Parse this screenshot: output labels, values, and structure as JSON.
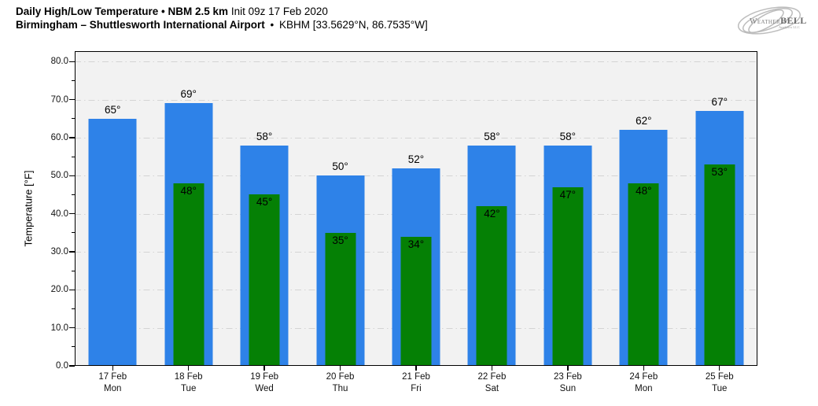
{
  "header": {
    "title_bold": "Daily High/Low Temperature • NBM 2.5 km",
    "title_regular": "Init 09z 17 Feb 2020",
    "subtitle_bold": "Birmingham – Shuttlesworth International Airport",
    "subtitle_separator": "•",
    "subtitle_regular": "KBHM [33.5629°N, 86.7535°W]"
  },
  "logo": {
    "brand_first": "Weather",
    "brand_second": "BELL",
    "subtext": "Analytics LLC"
  },
  "chart_data": {
    "type": "bar",
    "title": "Daily High/Low Temperature • NBM 2.5 km Init 09z 17 Feb 2020 — Birmingham – Shuttlesworth International Airport • KBHM",
    "xlabel": "",
    "ylabel": "Temperature [°F]",
    "ylim": [
      0,
      82.75
    ],
    "ytick_step": 10,
    "ytick_labels": [
      "0.0",
      "10.0",
      "20.0",
      "30.0",
      "40.0",
      "50.0",
      "60.0",
      "70.0",
      "80.0"
    ],
    "value_suffix": "°",
    "grid": "horizontal dash-dot",
    "legend": "none",
    "plot_bg": "#f2f2f2",
    "grid_color": "#d4d4d4",
    "categories": [
      {
        "date": "17 Feb",
        "day": "Mon"
      },
      {
        "date": "18 Feb",
        "day": "Tue"
      },
      {
        "date": "19 Feb",
        "day": "Wed"
      },
      {
        "date": "20 Feb",
        "day": "Thu"
      },
      {
        "date": "21 Feb",
        "day": "Fri"
      },
      {
        "date": "22 Feb",
        "day": "Sat"
      },
      {
        "date": "23 Feb",
        "day": "Sun"
      },
      {
        "date": "24 Feb",
        "day": "Mon"
      },
      {
        "date": "25 Feb",
        "day": "Tue"
      }
    ],
    "series": [
      {
        "name": "High",
        "color": "#2e82e8",
        "values": [
          65,
          69,
          58,
          50,
          52,
          58,
          58,
          62,
          67
        ]
      },
      {
        "name": "Low",
        "color": "#058005",
        "values": [
          null,
          48,
          45,
          35,
          34,
          42,
          47,
          48,
          53
        ]
      }
    ]
  }
}
